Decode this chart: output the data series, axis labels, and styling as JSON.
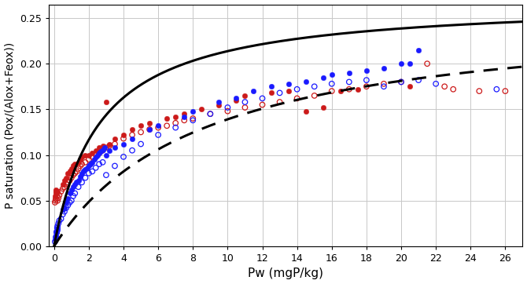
{
  "title": "",
  "xlabel": "Pw (mgP/kg)",
  "ylabel": "P saturation (Pox/(Alox+Feox))",
  "xlim": [
    -0.3,
    27
  ],
  "ylim": [
    0.0,
    0.265
  ],
  "xticks": [
    0,
    2,
    4,
    6,
    8,
    10,
    12,
    14,
    16,
    18,
    20,
    22,
    24,
    26
  ],
  "yticks": [
    0.0,
    0.05,
    0.1,
    0.15,
    0.2,
    0.25
  ],
  "grid": true,
  "blue_filled": [
    [
      0.05,
      0.008
    ],
    [
      0.08,
      0.012
    ],
    [
      0.1,
      0.016
    ],
    [
      0.12,
      0.01
    ],
    [
      0.15,
      0.015
    ],
    [
      0.18,
      0.018
    ],
    [
      0.2,
      0.02
    ],
    [
      0.5,
      0.04
    ],
    [
      0.6,
      0.042
    ],
    [
      0.7,
      0.048
    ],
    [
      0.8,
      0.052
    ],
    [
      0.9,
      0.058
    ],
    [
      1.0,
      0.062
    ],
    [
      1.1,
      0.065
    ],
    [
      1.2,
      0.068
    ],
    [
      1.3,
      0.07
    ],
    [
      1.4,
      0.072
    ],
    [
      1.5,
      0.076
    ],
    [
      1.6,
      0.08
    ],
    [
      1.7,
      0.082
    ],
    [
      1.8,
      0.084
    ],
    [
      1.9,
      0.086
    ],
    [
      2.0,
      0.088
    ],
    [
      2.1,
      0.09
    ],
    [
      2.2,
      0.092
    ],
    [
      2.3,
      0.095
    ],
    [
      2.4,
      0.098
    ],
    [
      2.5,
      0.1
    ],
    [
      2.6,
      0.102
    ],
    [
      2.7,
      0.104
    ],
    [
      2.8,
      0.106
    ],
    [
      2.9,
      0.108
    ],
    [
      3.0,
      0.1
    ],
    [
      3.2,
      0.105
    ],
    [
      3.5,
      0.108
    ],
    [
      4.0,
      0.112
    ],
    [
      4.5,
      0.118
    ],
    [
      5.5,
      0.128
    ],
    [
      6.0,
      0.132
    ],
    [
      7.5,
      0.142
    ],
    [
      8.0,
      0.148
    ],
    [
      9.5,
      0.158
    ],
    [
      10.5,
      0.162
    ],
    [
      11.5,
      0.17
    ],
    [
      12.5,
      0.175
    ],
    [
      13.5,
      0.178
    ],
    [
      14.5,
      0.18
    ],
    [
      15.5,
      0.185
    ],
    [
      16.0,
      0.188
    ],
    [
      17.0,
      0.19
    ],
    [
      18.0,
      0.192
    ],
    [
      19.0,
      0.195
    ],
    [
      20.0,
      0.2
    ],
    [
      20.5,
      0.2
    ],
    [
      21.0,
      0.215
    ]
  ],
  "blue_open": [
    [
      0.05,
      0.005
    ],
    [
      0.1,
      0.01
    ],
    [
      0.15,
      0.015
    ],
    [
      0.18,
      0.02
    ],
    [
      0.2,
      0.022
    ],
    [
      0.25,
      0.025
    ],
    [
      0.3,
      0.028
    ],
    [
      0.4,
      0.03
    ],
    [
      0.5,
      0.035
    ],
    [
      0.6,
      0.038
    ],
    [
      0.7,
      0.042
    ],
    [
      0.8,
      0.045
    ],
    [
      0.9,
      0.048
    ],
    [
      1.0,
      0.05
    ],
    [
      1.1,
      0.055
    ],
    [
      1.2,
      0.058
    ],
    [
      1.4,
      0.065
    ],
    [
      1.6,
      0.07
    ],
    [
      1.8,
      0.075
    ],
    [
      2.0,
      0.08
    ],
    [
      2.2,
      0.082
    ],
    [
      2.4,
      0.086
    ],
    [
      2.6,
      0.09
    ],
    [
      2.8,
      0.092
    ],
    [
      3.0,
      0.078
    ],
    [
      3.5,
      0.088
    ],
    [
      4.0,
      0.098
    ],
    [
      4.5,
      0.105
    ],
    [
      5.0,
      0.112
    ],
    [
      6.0,
      0.122
    ],
    [
      7.0,
      0.13
    ],
    [
      8.0,
      0.138
    ],
    [
      9.0,
      0.145
    ],
    [
      10.0,
      0.152
    ],
    [
      11.0,
      0.158
    ],
    [
      12.0,
      0.162
    ],
    [
      13.0,
      0.168
    ],
    [
      14.0,
      0.172
    ],
    [
      15.0,
      0.175
    ],
    [
      16.0,
      0.178
    ],
    [
      17.0,
      0.18
    ],
    [
      18.0,
      0.182
    ],
    [
      19.0,
      0.175
    ],
    [
      20.0,
      0.18
    ],
    [
      21.0,
      0.182
    ],
    [
      22.0,
      0.178
    ],
    [
      25.5,
      0.172
    ]
  ],
  "red_filled": [
    [
      0.05,
      0.055
    ],
    [
      0.08,
      0.058
    ],
    [
      0.1,
      0.06
    ],
    [
      0.12,
      0.062
    ],
    [
      0.15,
      0.058
    ],
    [
      0.2,
      0.06
    ],
    [
      0.5,
      0.068
    ],
    [
      0.6,
      0.072
    ],
    [
      0.7,
      0.075
    ],
    [
      0.8,
      0.08
    ],
    [
      0.9,
      0.082
    ],
    [
      1.0,
      0.085
    ],
    [
      1.1,
      0.088
    ],
    [
      1.2,
      0.09
    ],
    [
      1.4,
      0.092
    ],
    [
      1.5,
      0.095
    ],
    [
      1.6,
      0.098
    ],
    [
      1.8,
      0.1
    ],
    [
      2.0,
      0.1
    ],
    [
      2.2,
      0.102
    ],
    [
      2.4,
      0.105
    ],
    [
      2.6,
      0.108
    ],
    [
      2.8,
      0.11
    ],
    [
      3.0,
      0.158
    ],
    [
      3.2,
      0.112
    ],
    [
      3.5,
      0.118
    ],
    [
      4.0,
      0.122
    ],
    [
      4.5,
      0.128
    ],
    [
      5.0,
      0.132
    ],
    [
      5.5,
      0.135
    ],
    [
      6.5,
      0.14
    ],
    [
      7.0,
      0.142
    ],
    [
      7.5,
      0.145
    ],
    [
      8.5,
      0.15
    ],
    [
      9.5,
      0.155
    ],
    [
      10.5,
      0.16
    ],
    [
      11.0,
      0.165
    ],
    [
      12.5,
      0.168
    ],
    [
      13.5,
      0.17
    ],
    [
      14.5,
      0.148
    ],
    [
      15.5,
      0.152
    ],
    [
      16.5,
      0.17
    ],
    [
      17.5,
      0.172
    ],
    [
      20.5,
      0.175
    ]
  ],
  "red_open": [
    [
      0.05,
      0.048
    ],
    [
      0.08,
      0.05
    ],
    [
      0.1,
      0.052
    ],
    [
      0.15,
      0.055
    ],
    [
      0.2,
      0.05
    ],
    [
      0.25,
      0.053
    ],
    [
      0.3,
      0.056
    ],
    [
      0.4,
      0.06
    ],
    [
      0.5,
      0.063
    ],
    [
      0.6,
      0.065
    ],
    [
      0.7,
      0.068
    ],
    [
      0.8,
      0.07
    ],
    [
      0.9,
      0.072
    ],
    [
      1.0,
      0.075
    ],
    [
      1.1,
      0.078
    ],
    [
      1.2,
      0.08
    ],
    [
      1.3,
      0.082
    ],
    [
      1.4,
      0.085
    ],
    [
      1.5,
      0.088
    ],
    [
      1.6,
      0.09
    ],
    [
      1.8,
      0.092
    ],
    [
      2.0,
      0.095
    ],
    [
      2.2,
      0.098
    ],
    [
      2.4,
      0.1
    ],
    [
      2.6,
      0.102
    ],
    [
      2.8,
      0.105
    ],
    [
      3.0,
      0.108
    ],
    [
      3.2,
      0.11
    ],
    [
      3.5,
      0.112
    ],
    [
      4.0,
      0.118
    ],
    [
      4.5,
      0.122
    ],
    [
      5.0,
      0.125
    ],
    [
      5.5,
      0.128
    ],
    [
      6.0,
      0.13
    ],
    [
      6.5,
      0.132
    ],
    [
      7.0,
      0.135
    ],
    [
      7.5,
      0.138
    ],
    [
      8.0,
      0.14
    ],
    [
      9.0,
      0.145
    ],
    [
      10.0,
      0.148
    ],
    [
      11.0,
      0.152
    ],
    [
      12.0,
      0.155
    ],
    [
      13.0,
      0.158
    ],
    [
      14.0,
      0.162
    ],
    [
      15.0,
      0.165
    ],
    [
      16.0,
      0.17
    ],
    [
      17.0,
      0.172
    ],
    [
      18.0,
      0.175
    ],
    [
      19.0,
      0.178
    ],
    [
      20.0,
      0.18
    ],
    [
      21.5,
      0.2
    ],
    [
      22.5,
      0.175
    ],
    [
      23.0,
      0.172
    ],
    [
      24.5,
      0.17
    ],
    [
      26.0,
      0.17
    ]
  ],
  "langmuir_blue": {
    "Smax": 0.27,
    "k": 0.38
  },
  "langmuir_red": {
    "Smax": 0.26,
    "k": 0.115
  },
  "blue_color": "#1a1aff",
  "red_color": "#cc1a1a",
  "curve_color": "#000000",
  "bg_color": "#ffffff",
  "grid_color": "#c8c8c8",
  "marker_size_filled": 22,
  "marker_size_open": 22,
  "linewidth_curve": 2.2,
  "open_linewidth": 0.9
}
